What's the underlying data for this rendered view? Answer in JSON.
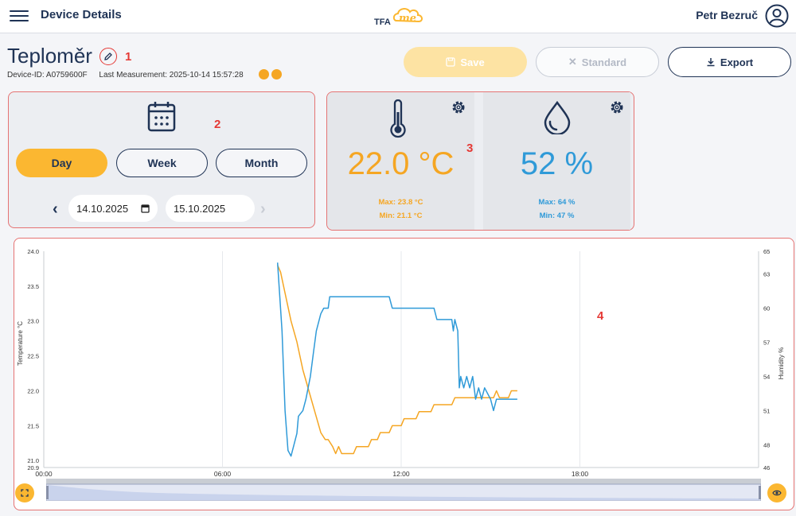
{
  "header": {
    "title": "Device Details",
    "logo_text": "TFA",
    "logo_script": "me",
    "user_name": "Petr Bezruč"
  },
  "device": {
    "name": "Teploměr",
    "device_id": "Device-ID: A0759600F",
    "last_measurement": "Last Measurement: 2025-10-14 15:57:28"
  },
  "annotations": [
    "1",
    "2",
    "3",
    "4"
  ],
  "actions": {
    "save_label": "Save",
    "standard_label": "Standard",
    "export_label": "Export"
  },
  "date_range": {
    "day_label": "Day",
    "week_label": "Week",
    "month_label": "Month",
    "selected": "Day",
    "from": "14.10.2025",
    "to": "15.10.2025"
  },
  "temperature": {
    "value": "22.0 °C",
    "max": "Max: 23.8 °C",
    "min": "Min: 21.1 °C",
    "color": "#f5a623"
  },
  "humidity": {
    "value": "52 %",
    "max": "Max: 64 %",
    "min": "Min: 47 %",
    "color": "#2f9ad8"
  },
  "chart_data": {
    "type": "line",
    "xlabel": "",
    "ylabel_left": "Temperature °C",
    "ylabel_right": "Humidity %",
    "x_ticks": [
      "00:00",
      "06:00",
      "12:00",
      "18:00"
    ],
    "y_left_ticks": [
      "20.9",
      "21.0",
      "21.5",
      "22.0",
      "22.5",
      "23.0",
      "23.5",
      "24.0"
    ],
    "y_right_ticks": [
      "46",
      "48",
      "51",
      "54",
      "57",
      "60",
      "63",
      "65"
    ],
    "ylim_left": [
      20.9,
      24.0
    ],
    "ylim_right": [
      46,
      65
    ],
    "xlim_hours": [
      0,
      24
    ],
    "grid": "vertical",
    "series": [
      {
        "name": "Temperature °C",
        "axis": "left",
        "color": "#f5a623",
        "points": [
          [
            7.85,
            23.8
          ],
          [
            7.95,
            23.7
          ],
          [
            8.1,
            23.4
          ],
          [
            8.3,
            23.0
          ],
          [
            8.5,
            22.7
          ],
          [
            8.7,
            22.3
          ],
          [
            8.9,
            22.0
          ],
          [
            9.1,
            21.7
          ],
          [
            9.3,
            21.4
          ],
          [
            9.45,
            21.3
          ],
          [
            9.55,
            21.3
          ],
          [
            9.7,
            21.2
          ],
          [
            9.8,
            21.1
          ],
          [
            9.9,
            21.2
          ],
          [
            10.0,
            21.1
          ],
          [
            10.1,
            21.1
          ],
          [
            10.4,
            21.1
          ],
          [
            10.5,
            21.2
          ],
          [
            10.9,
            21.2
          ],
          [
            11.0,
            21.3
          ],
          [
            11.2,
            21.3
          ],
          [
            11.3,
            21.4
          ],
          [
            11.6,
            21.4
          ],
          [
            11.7,
            21.5
          ],
          [
            12.0,
            21.5
          ],
          [
            12.1,
            21.6
          ],
          [
            12.5,
            21.6
          ],
          [
            12.6,
            21.7
          ],
          [
            13.0,
            21.7
          ],
          [
            13.1,
            21.8
          ],
          [
            13.7,
            21.8
          ],
          [
            13.8,
            21.9
          ],
          [
            15.1,
            21.9
          ],
          [
            15.2,
            22.0
          ],
          [
            15.3,
            21.9
          ],
          [
            15.6,
            21.9
          ],
          [
            15.7,
            22.0
          ],
          [
            15.9,
            22.0
          ]
        ]
      },
      {
        "name": "Humidity %",
        "axis": "right",
        "color": "#2f9ad8",
        "points": [
          [
            7.85,
            64
          ],
          [
            8.0,
            58
          ],
          [
            8.1,
            51
          ],
          [
            8.2,
            47.5
          ],
          [
            8.3,
            47
          ],
          [
            8.4,
            48
          ],
          [
            8.5,
            49
          ],
          [
            8.55,
            50.5
          ],
          [
            8.7,
            51
          ],
          [
            8.8,
            52
          ],
          [
            8.95,
            54
          ],
          [
            9.05,
            56
          ],
          [
            9.15,
            58
          ],
          [
            9.3,
            59.5
          ],
          [
            9.4,
            60
          ],
          [
            9.55,
            60
          ],
          [
            9.6,
            61
          ],
          [
            10.0,
            61
          ],
          [
            10.1,
            61
          ],
          [
            11.5,
            61
          ],
          [
            11.6,
            61
          ],
          [
            11.7,
            60
          ],
          [
            13.0,
            60
          ],
          [
            13.1,
            60
          ],
          [
            13.2,
            59
          ],
          [
            13.7,
            59
          ],
          [
            13.75,
            58
          ],
          [
            13.8,
            59
          ],
          [
            13.9,
            58
          ],
          [
            13.95,
            53
          ],
          [
            14.0,
            54
          ],
          [
            14.1,
            53
          ],
          [
            14.2,
            54
          ],
          [
            14.3,
            53
          ],
          [
            14.4,
            54
          ],
          [
            14.5,
            52
          ],
          [
            14.6,
            53
          ],
          [
            14.7,
            52
          ],
          [
            14.8,
            53
          ],
          [
            15.0,
            52
          ],
          [
            15.1,
            51
          ],
          [
            15.2,
            52
          ],
          [
            15.3,
            52
          ],
          [
            15.5,
            52
          ],
          [
            15.9,
            52
          ]
        ]
      }
    ]
  }
}
